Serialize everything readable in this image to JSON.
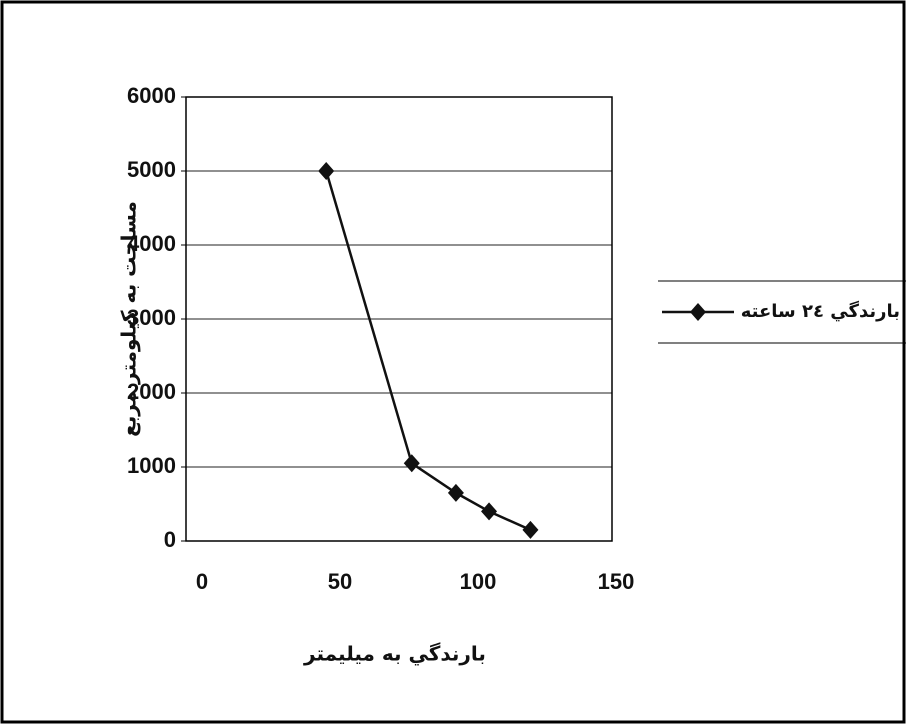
{
  "chart_data": {
    "type": "line",
    "x_label": "بارندگي به ميليمتر",
    "y_label": "مساحت به كيلومتر مربع",
    "x": [
      45,
      76,
      92,
      104,
      119
    ],
    "series": [
      {
        "name": "بارندگي ٢٤ ساعته",
        "color": "#111111",
        "values": [
          5000,
          1050,
          650,
          400,
          150
        ]
      }
    ],
    "xlim": [
      0,
      150
    ],
    "xticks": [
      0,
      50,
      100,
      150
    ],
    "ylim": [
      0,
      6000
    ],
    "yticks": [
      0,
      1000,
      2000,
      3000,
      4000,
      5000,
      6000
    ],
    "grid": true,
    "legend": "right"
  }
}
